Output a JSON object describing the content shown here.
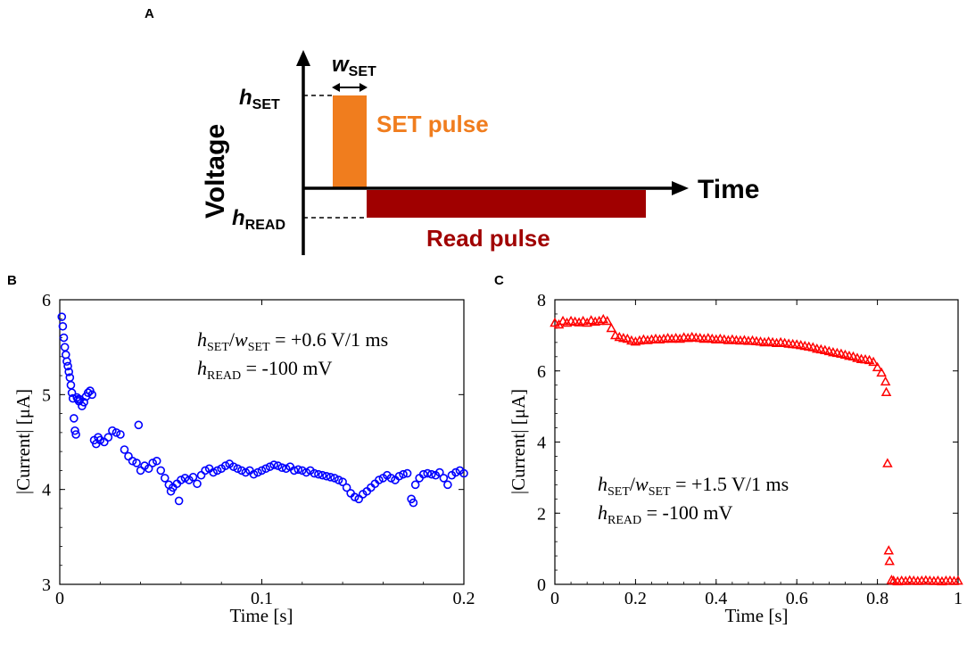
{
  "diagram": {
    "panel_label": "A",
    "y_axis_label": "Voltage",
    "x_axis_label": "Time",
    "h_set": {
      "main": "h",
      "sub": "SET"
    },
    "w_set": {
      "main": "w",
      "sub": "SET"
    },
    "h_read": {
      "main": "h",
      "sub": "READ"
    },
    "set_pulse_label": "SET pulse",
    "read_pulse_label": "Read pulse",
    "colors": {
      "set_pulse": "#f07d1e",
      "read_pulse": "#a00000",
      "axis": "#000000"
    }
  },
  "chart_data": [
    {
      "panel_label": "B",
      "type": "scatter",
      "marker": "circle",
      "color": "#0000ff",
      "xlabel": "Time [s]",
      "ylabel": "|Current| [μA]",
      "xlim": [
        0,
        0.2
      ],
      "ylim": [
        3,
        6
      ],
      "xticks": [
        0,
        0.1,
        0.2
      ],
      "xtick_labels": [
        "0",
        "0.1",
        "0.2"
      ],
      "yticks": [
        3,
        4,
        5,
        6
      ],
      "ytick_labels": [
        "3",
        "4",
        "5",
        "6"
      ],
      "annotation": {
        "line1": {
          "h": "h",
          "h_sub": "SET",
          "slash": "/",
          "w": "w",
          "w_sub": "SET",
          "rest": " = +0.6 V/1 ms"
        },
        "line2": {
          "h": "h",
          "h_sub": "READ",
          "rest": " = -100 mV"
        }
      },
      "series": [
        {
          "name": "current",
          "points": [
            [
              0.001,
              5.82
            ],
            [
              0.0015,
              5.72
            ],
            [
              0.002,
              5.6
            ],
            [
              0.0025,
              5.5
            ],
            [
              0.003,
              5.42
            ],
            [
              0.0035,
              5.35
            ],
            [
              0.004,
              5.3
            ],
            [
              0.0045,
              5.24
            ],
            [
              0.005,
              5.18
            ],
            [
              0.0055,
              5.1
            ],
            [
              0.006,
              5.02
            ],
            [
              0.0065,
              4.96
            ],
            [
              0.007,
              4.75
            ],
            [
              0.0075,
              4.62
            ],
            [
              0.008,
              4.58
            ],
            [
              0.0085,
              4.97
            ],
            [
              0.009,
              4.95
            ],
            [
              0.0095,
              4.93
            ],
            [
              0.01,
              4.95
            ],
            [
              0.011,
              4.88
            ],
            [
              0.012,
              4.92
            ],
            [
              0.013,
              4.98
            ],
            [
              0.014,
              5.02
            ],
            [
              0.015,
              5.04
            ],
            [
              0.016,
              5.0
            ],
            [
              0.017,
              4.52
            ],
            [
              0.018,
              4.48
            ],
            [
              0.019,
              4.55
            ],
            [
              0.02,
              4.52
            ],
            [
              0.022,
              4.5
            ],
            [
              0.024,
              4.55
            ],
            [
              0.026,
              4.62
            ],
            [
              0.028,
              4.6
            ],
            [
              0.03,
              4.58
            ],
            [
              0.032,
              4.42
            ],
            [
              0.034,
              4.35
            ],
            [
              0.036,
              4.3
            ],
            [
              0.038,
              4.28
            ],
            [
              0.039,
              4.68
            ],
            [
              0.04,
              4.2
            ],
            [
              0.042,
              4.25
            ],
            [
              0.044,
              4.22
            ],
            [
              0.046,
              4.28
            ],
            [
              0.048,
              4.3
            ],
            [
              0.05,
              4.2
            ],
            [
              0.052,
              4.12
            ],
            [
              0.054,
              4.05
            ],
            [
              0.055,
              3.98
            ],
            [
              0.056,
              4.02
            ],
            [
              0.058,
              4.06
            ],
            [
              0.059,
              3.88
            ],
            [
              0.06,
              4.1
            ],
            [
              0.062,
              4.12
            ],
            [
              0.064,
              4.1
            ],
            [
              0.066,
              4.13
            ],
            [
              0.068,
              4.06
            ],
            [
              0.07,
              4.15
            ],
            [
              0.072,
              4.2
            ],
            [
              0.074,
              4.22
            ],
            [
              0.076,
              4.18
            ],
            [
              0.078,
              4.2
            ],
            [
              0.08,
              4.22
            ],
            [
              0.082,
              4.25
            ],
            [
              0.084,
              4.27
            ],
            [
              0.086,
              4.24
            ],
            [
              0.088,
              4.22
            ],
            [
              0.09,
              4.2
            ],
            [
              0.092,
              4.18
            ],
            [
              0.094,
              4.2
            ],
            [
              0.096,
              4.16
            ],
            [
              0.098,
              4.18
            ],
            [
              0.1,
              4.2
            ],
            [
              0.102,
              4.22
            ],
            [
              0.104,
              4.24
            ],
            [
              0.106,
              4.26
            ],
            [
              0.108,
              4.25
            ],
            [
              0.11,
              4.23
            ],
            [
              0.112,
              4.22
            ],
            [
              0.114,
              4.24
            ],
            [
              0.116,
              4.2
            ],
            [
              0.118,
              4.21
            ],
            [
              0.12,
              4.2
            ],
            [
              0.122,
              4.18
            ],
            [
              0.124,
              4.2
            ],
            [
              0.126,
              4.17
            ],
            [
              0.128,
              4.16
            ],
            [
              0.13,
              4.15
            ],
            [
              0.132,
              4.14
            ],
            [
              0.134,
              4.13
            ],
            [
              0.136,
              4.12
            ],
            [
              0.138,
              4.1
            ],
            [
              0.14,
              4.08
            ],
            [
              0.142,
              4.02
            ],
            [
              0.144,
              3.96
            ],
            [
              0.146,
              3.92
            ],
            [
              0.148,
              3.9
            ],
            [
              0.15,
              3.95
            ],
            [
              0.152,
              3.98
            ],
            [
              0.154,
              4.02
            ],
            [
              0.156,
              4.06
            ],
            [
              0.158,
              4.1
            ],
            [
              0.16,
              4.12
            ],
            [
              0.162,
              4.15
            ],
            [
              0.164,
              4.12
            ],
            [
              0.166,
              4.1
            ],
            [
              0.168,
              4.14
            ],
            [
              0.17,
              4.16
            ],
            [
              0.172,
              4.17
            ],
            [
              0.174,
              3.9
            ],
            [
              0.175,
              3.86
            ],
            [
              0.176,
              4.05
            ],
            [
              0.178,
              4.12
            ],
            [
              0.18,
              4.16
            ],
            [
              0.182,
              4.17
            ],
            [
              0.184,
              4.16
            ],
            [
              0.186,
              4.15
            ],
            [
              0.188,
              4.18
            ],
            [
              0.19,
              4.12
            ],
            [
              0.192,
              4.05
            ],
            [
              0.194,
              4.15
            ],
            [
              0.196,
              4.18
            ],
            [
              0.198,
              4.2
            ],
            [
              0.2,
              4.17
            ]
          ]
        }
      ]
    },
    {
      "panel_label": "C",
      "type": "scatter",
      "marker": "triangle",
      "color": "#ff0000",
      "xlabel": "Time [s]",
      "ylabel": "|Current| [μA]",
      "xlim": [
        0,
        1
      ],
      "ylim": [
        0,
        8
      ],
      "xticks": [
        0,
        0.2,
        0.4,
        0.6,
        0.8,
        1
      ],
      "xtick_labels": [
        "0",
        "0.2",
        "0.4",
        "0.6",
        "0.8",
        "1"
      ],
      "yticks": [
        0,
        2,
        4,
        6,
        8
      ],
      "ytick_labels": [
        "0",
        "2",
        "4",
        "6",
        "8"
      ],
      "annotation": {
        "line1": {
          "h": "h",
          "h_sub": "SET",
          "slash": "/",
          "w": "w",
          "w_sub": "SET",
          "rest": " = +1.5 V/1 ms"
        },
        "line2": {
          "h": "h",
          "h_sub": "READ",
          "rest": " = -100 mV"
        }
      },
      "series": [
        {
          "name": "current",
          "points": [
            [
              0.0,
              7.35
            ],
            [
              0.01,
              7.3
            ],
            [
              0.02,
              7.4
            ],
            [
              0.03,
              7.35
            ],
            [
              0.04,
              7.4
            ],
            [
              0.05,
              7.38
            ],
            [
              0.06,
              7.36
            ],
            [
              0.07,
              7.4
            ],
            [
              0.08,
              7.35
            ],
            [
              0.09,
              7.42
            ],
            [
              0.1,
              7.38
            ],
            [
              0.11,
              7.4
            ],
            [
              0.12,
              7.45
            ],
            [
              0.13,
              7.4
            ],
            [
              0.14,
              7.2
            ],
            [
              0.15,
              7.0
            ],
            [
              0.16,
              6.95
            ],
            [
              0.17,
              6.92
            ],
            [
              0.18,
              6.9
            ],
            [
              0.19,
              6.85
            ],
            [
              0.2,
              6.82
            ],
            [
              0.21,
              6.85
            ],
            [
              0.22,
              6.88
            ],
            [
              0.23,
              6.86
            ],
            [
              0.24,
              6.88
            ],
            [
              0.25,
              6.9
            ],
            [
              0.26,
              6.88
            ],
            [
              0.27,
              6.9
            ],
            [
              0.28,
              6.92
            ],
            [
              0.29,
              6.9
            ],
            [
              0.3,
              6.92
            ],
            [
              0.31,
              6.9
            ],
            [
              0.32,
              6.94
            ],
            [
              0.33,
              6.92
            ],
            [
              0.34,
              6.95
            ],
            [
              0.35,
              6.93
            ],
            [
              0.36,
              6.92
            ],
            [
              0.37,
              6.9
            ],
            [
              0.38,
              6.92
            ],
            [
              0.39,
              6.9
            ],
            [
              0.4,
              6.88
            ],
            [
              0.41,
              6.9
            ],
            [
              0.42,
              6.88
            ],
            [
              0.43,
              6.86
            ],
            [
              0.44,
              6.88
            ],
            [
              0.45,
              6.86
            ],
            [
              0.46,
              6.85
            ],
            [
              0.47,
              6.86
            ],
            [
              0.48,
              6.84
            ],
            [
              0.49,
              6.85
            ],
            [
              0.5,
              6.83
            ],
            [
              0.51,
              6.82
            ],
            [
              0.52,
              6.8
            ],
            [
              0.53,
              6.82
            ],
            [
              0.54,
              6.8
            ],
            [
              0.55,
              6.78
            ],
            [
              0.56,
              6.8
            ],
            [
              0.57,
              6.78
            ],
            [
              0.58,
              6.76
            ],
            [
              0.59,
              6.75
            ],
            [
              0.6,
              6.74
            ],
            [
              0.61,
              6.72
            ],
            [
              0.62,
              6.7
            ],
            [
              0.63,
              6.68
            ],
            [
              0.64,
              6.66
            ],
            [
              0.65,
              6.62
            ],
            [
              0.66,
              6.6
            ],
            [
              0.67,
              6.58
            ],
            [
              0.68,
              6.55
            ],
            [
              0.69,
              6.52
            ],
            [
              0.7,
              6.5
            ],
            [
              0.71,
              6.48
            ],
            [
              0.72,
              6.45
            ],
            [
              0.73,
              6.42
            ],
            [
              0.74,
              6.4
            ],
            [
              0.75,
              6.36
            ],
            [
              0.76,
              6.33
            ],
            [
              0.77,
              6.32
            ],
            [
              0.78,
              6.3
            ],
            [
              0.79,
              6.25
            ],
            [
              0.8,
              6.1
            ],
            [
              0.81,
              5.95
            ],
            [
              0.82,
              5.7
            ],
            [
              0.822,
              5.4
            ],
            [
              0.825,
              3.4
            ],
            [
              0.828,
              0.95
            ],
            [
              0.83,
              0.65
            ],
            [
              0.835,
              0.12
            ],
            [
              0.84,
              0.1
            ],
            [
              0.85,
              0.08
            ],
            [
              0.86,
              0.1
            ],
            [
              0.87,
              0.09
            ],
            [
              0.88,
              0.11
            ],
            [
              0.89,
              0.1
            ],
            [
              0.9,
              0.09
            ],
            [
              0.91,
              0.1
            ],
            [
              0.92,
              0.11
            ],
            [
              0.93,
              0.1
            ],
            [
              0.94,
              0.09
            ],
            [
              0.95,
              0.1
            ],
            [
              0.96,
              0.08
            ],
            [
              0.97,
              0.1
            ],
            [
              0.98,
              0.1
            ],
            [
              0.99,
              0.09
            ],
            [
              1.0,
              0.1
            ]
          ]
        }
      ]
    }
  ]
}
